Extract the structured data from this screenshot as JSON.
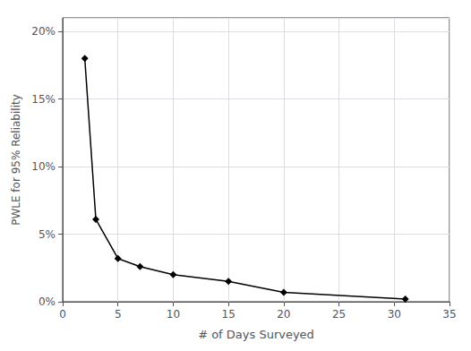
{
  "chart_data": {
    "type": "line",
    "xlabel": "# of Days Surveyed",
    "ylabel": "PWLE for 95% Reliability",
    "x": [
      2,
      3,
      5,
      7,
      10,
      15,
      20,
      31
    ],
    "values": [
      0.18,
      0.061,
      0.032,
      0.026,
      0.02,
      0.015,
      0.007,
      0.002
    ],
    "color": "#000000",
    "marker": "diamond",
    "xlim": [
      0,
      35
    ],
    "xticks": [
      0,
      5,
      10,
      15,
      20,
      25,
      30,
      35
    ],
    "ylim": [
      0,
      0.21
    ],
    "yticks": [
      {
        "value": 0.0,
        "label": "0%"
      },
      {
        "value": 0.05,
        "label": "5%"
      },
      {
        "value": 0.1,
        "label": "10%"
      },
      {
        "value": 0.15,
        "label": "15%"
      },
      {
        "value": 0.2,
        "label": "20%"
      }
    ],
    "grid": true
  }
}
